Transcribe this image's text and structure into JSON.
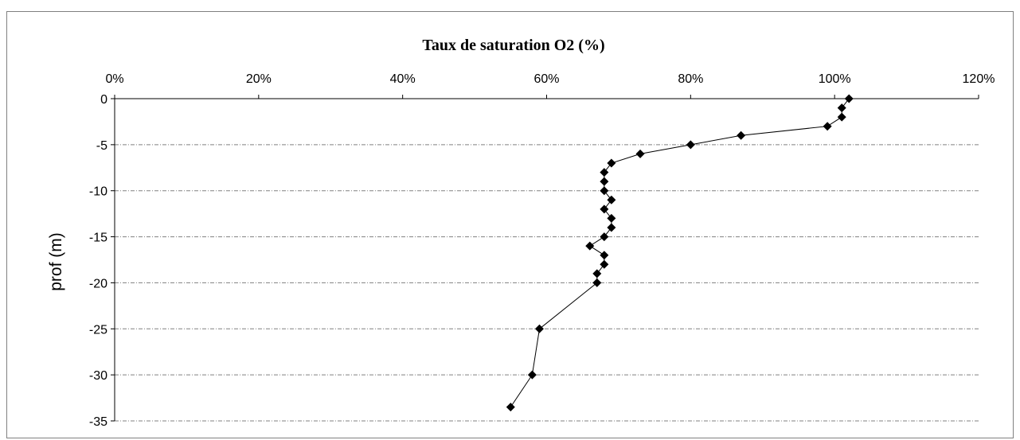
{
  "chart_data": {
    "type": "scatter",
    "title": "Taux de saturation O2 (%)",
    "xlabel": "",
    "ylabel": "prof (m)",
    "x_axis_position": "top",
    "xlim": [
      0,
      120
    ],
    "ylim": [
      -35,
      0
    ],
    "x_ticks": [
      0,
      20,
      40,
      60,
      80,
      100,
      120
    ],
    "x_tick_labels": [
      "0%",
      "20%",
      "40%",
      "60%",
      "80%",
      "100%",
      "120%"
    ],
    "y_ticks": [
      0,
      -5,
      -10,
      -15,
      -20,
      -25,
      -30,
      -35
    ],
    "y_tick_labels": [
      "0",
      "-5",
      "-10",
      "-15",
      "-20",
      "-25",
      "-30",
      "-35"
    ],
    "grid": "horizontal dashed",
    "legend": "none",
    "marker": "diamond",
    "line": true,
    "colors": {
      "marker": "#000000",
      "line": "#000000",
      "grid": "#808080"
    },
    "series": [
      {
        "points": [
          {
            "x": 102,
            "y": 0
          },
          {
            "x": 101,
            "y": -1
          },
          {
            "x": 101,
            "y": -2
          },
          {
            "x": 99,
            "y": -3
          },
          {
            "x": 87,
            "y": -4
          },
          {
            "x": 80,
            "y": -5
          },
          {
            "x": 73,
            "y": -6
          },
          {
            "x": 69,
            "y": -7
          },
          {
            "x": 68,
            "y": -8
          },
          {
            "x": 68,
            "y": -9
          },
          {
            "x": 68,
            "y": -10
          },
          {
            "x": 69,
            "y": -11
          },
          {
            "x": 68,
            "y": -12
          },
          {
            "x": 69,
            "y": -13
          },
          {
            "x": 69,
            "y": -14
          },
          {
            "x": 68,
            "y": -15
          },
          {
            "x": 66,
            "y": -16
          },
          {
            "x": 68,
            "y": -17
          },
          {
            "x": 68,
            "y": -18
          },
          {
            "x": 67,
            "y": -19
          },
          {
            "x": 67,
            "y": -20
          },
          {
            "x": 59,
            "y": -25
          },
          {
            "x": 58,
            "y": -30
          },
          {
            "x": 55,
            "y": -33.5
          }
        ]
      }
    ]
  }
}
